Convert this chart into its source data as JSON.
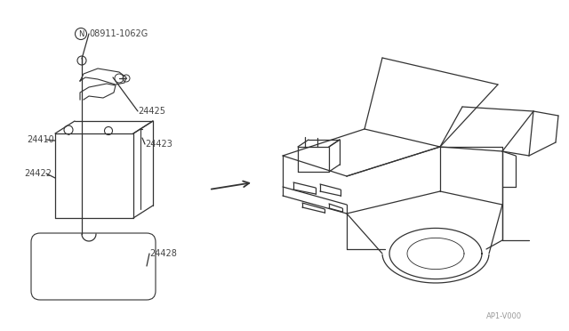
{
  "bg_color": "#ffffff",
  "line_color": "#333333",
  "label_color": "#444444",
  "watermark_text": "AP1-V000",
  "fig_w": 6.4,
  "fig_h": 3.72,
  "dpi": 100
}
